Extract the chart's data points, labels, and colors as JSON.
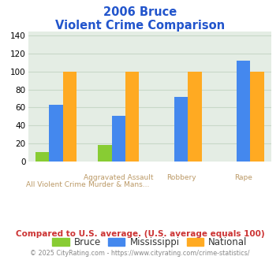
{
  "title_line1": "2006 Bruce",
  "title_line2": "Violent Crime Comparison",
  "series": {
    "Bruce": [
      10,
      18,
      0,
      0
    ],
    "Mississippi": [
      63,
      51,
      72,
      112
    ],
    "National": [
      100,
      100,
      100,
      100
    ]
  },
  "colors": {
    "Bruce": "#88cc33",
    "Mississippi": "#4488ee",
    "National": "#ffaa22"
  },
  "ylim": [
    0,
    145
  ],
  "yticks": [
    0,
    20,
    40,
    60,
    80,
    100,
    120,
    140
  ],
  "grid_color": "#c8d8c8",
  "bg_color": "#e4ede4",
  "title_color": "#2255cc",
  "xlabel_top_color": "#bb9966",
  "xlabel_bot_color": "#bb9966",
  "footer_text": "Compared to U.S. average. (U.S. average equals 100)",
  "footer_color": "#cc3333",
  "credit_text": "© 2025 CityRating.com - https://www.cityrating.com/crime-statistics/",
  "credit_color": "#888888",
  "tick_labels_top": [
    "",
    "Aggravated Assault",
    "Robbery",
    "Rape"
  ],
  "tick_labels_bot": [
    "All Violent Crime",
    "Murder & Mans...",
    "",
    ""
  ]
}
